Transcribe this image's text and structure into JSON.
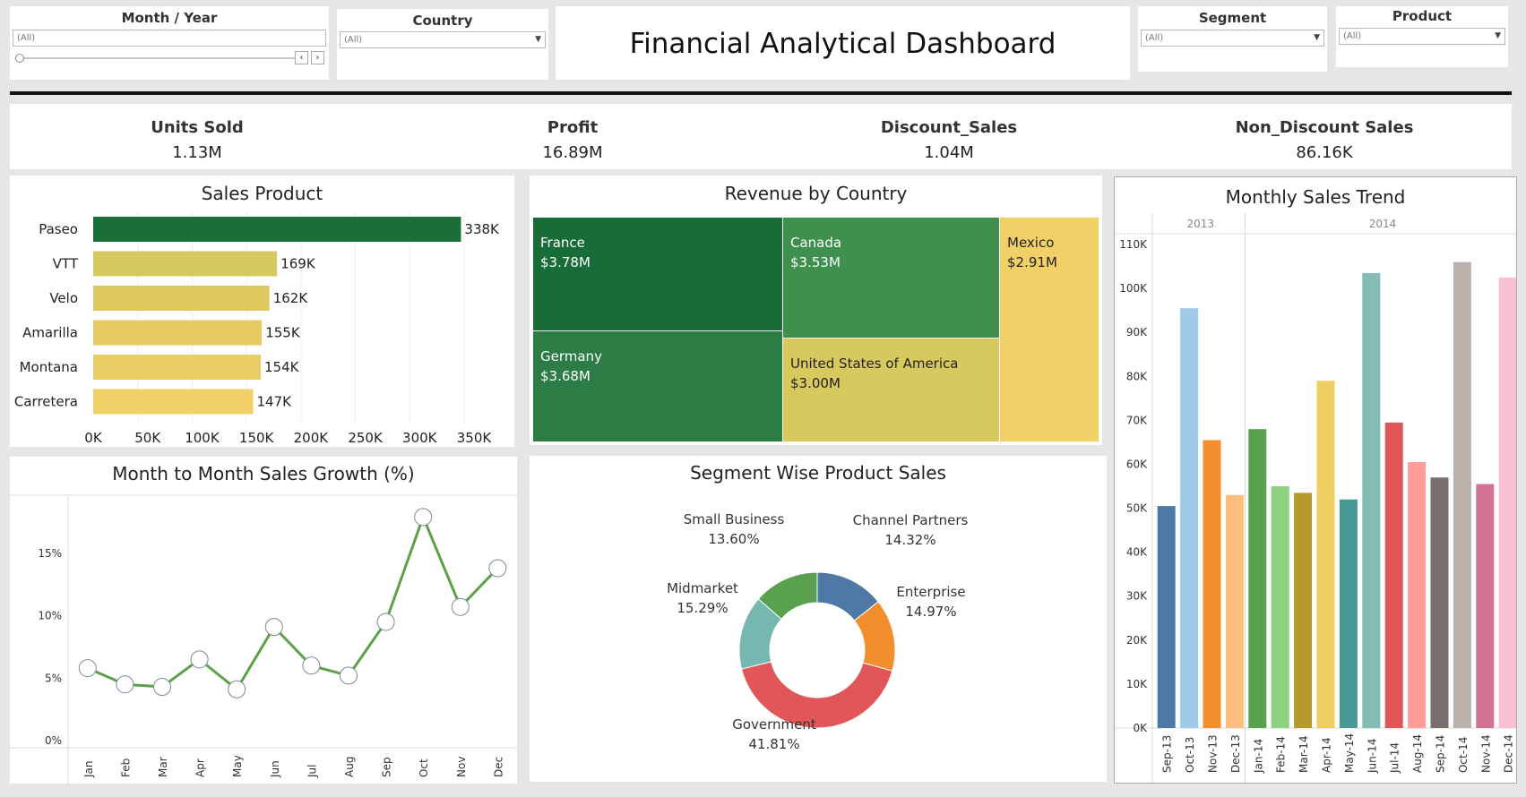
{
  "filters": {
    "month_year": {
      "title": "Month / Year",
      "value": "(All)"
    },
    "country": {
      "title": "Country",
      "value": "(All)"
    },
    "segment": {
      "title": "Segment",
      "value": "(All)"
    },
    "product": {
      "title": "Product",
      "value": "(All)"
    }
  },
  "dashboard_title": "Financial Analytical Dashboard",
  "kpis": [
    {
      "label": "Units Sold",
      "value": "1.13M"
    },
    {
      "label": "Profit",
      "value": "16.89M"
    },
    {
      "label": "Discount_Sales",
      "value": "1.04M"
    },
    {
      "label": "Non_Discount Sales",
      "value": "86.16K"
    }
  ],
  "icons": {
    "prev": "chevron-left-icon",
    "next": "chevron-right-icon",
    "dropdown": "chevron-down-icon"
  },
  "colors": {
    "dark_green": "#1a6e37",
    "mid_green": "#2d7d45",
    "green": "#3e8f4e",
    "olive_yellow": "#d6c95e",
    "yellow": "#f1d067",
    "line_green": "#5da04a"
  },
  "chart_data": [
    {
      "id": "sales_product",
      "type": "bar",
      "orientation": "horizontal",
      "title": "Sales Product",
      "categories": [
        "Paseo",
        "VTT",
        "Velo",
        "Amarilla",
        "Montana",
        "Carretera"
      ],
      "values": [
        338,
        169,
        162,
        155,
        154,
        147
      ],
      "value_labels": [
        "338K",
        "169K",
        "162K",
        "155K",
        "154K",
        "147K"
      ],
      "colors": [
        "#1a6e37",
        "#d6c95e",
        "#dfc95f",
        "#e6cc63",
        "#e8cd64",
        "#f1d067"
      ],
      "xlim": [
        0,
        350
      ],
      "xticks": [
        "0K",
        "50K",
        "100K",
        "150K",
        "200K",
        "250K",
        "300K",
        "350K"
      ]
    },
    {
      "id": "revenue_by_country",
      "type": "treemap",
      "title": "Revenue by Country",
      "items": [
        {
          "name": "France",
          "label": "$3.78M",
          "value": 3.78,
          "color": "#176c37"
        },
        {
          "name": "Germany",
          "label": "$3.68M",
          "value": 3.68,
          "color": "#2b7c45"
        },
        {
          "name": "Canada",
          "label": "$3.53M",
          "value": 3.53,
          "color": "#3f8f4f"
        },
        {
          "name": "United States of America",
          "label": "$3.00M",
          "value": 3.0,
          "color": "#d7c95e"
        },
        {
          "name": "Mexico",
          "label": "$2.91M",
          "value": 2.91,
          "color": "#f2d068"
        }
      ]
    },
    {
      "id": "monthly_sales_trend",
      "type": "bar",
      "title": "Monthly Sales Trend",
      "groups": [
        {
          "label": "2013",
          "count": 4
        },
        {
          "label": "2014",
          "count": 12
        }
      ],
      "categories": [
        "Sep-13",
        "Oct-13",
        "Nov-13",
        "Dec-13",
        "Jan-14",
        "Feb-14",
        "Mar-14",
        "Apr-14",
        "May-14",
        "Jun-14",
        "Jul-14",
        "Aug-14",
        "Sep-14",
        "Oct-14",
        "Nov-14",
        "Dec-14"
      ],
      "values": [
        50500,
        95500,
        65500,
        53000,
        68000,
        55000,
        53500,
        79000,
        52000,
        103500,
        69500,
        60500,
        57000,
        106000,
        55500,
        102500
      ],
      "colors": [
        "#4e79a7",
        "#a0cbe8",
        "#f28e2b",
        "#ffbe7d",
        "#59a14f",
        "#8cd17d",
        "#b6992d",
        "#f1ce63",
        "#499894",
        "#86bcb6",
        "#e15759",
        "#ff9d9a",
        "#79706e",
        "#bab0ac",
        "#d37295",
        "#fabfd2"
      ],
      "ylim": [
        0,
        110000
      ],
      "yticks": [
        "0K",
        "10K",
        "20K",
        "30K",
        "40K",
        "50K",
        "60K",
        "70K",
        "80K",
        "90K",
        "100K",
        "110K"
      ]
    },
    {
      "id": "month_to_month_growth",
      "type": "line",
      "title": "Month to Month Sales Growth (%)",
      "categories": [
        "Jan",
        "Feb",
        "Mar",
        "Apr",
        "May",
        "Jun",
        "Jul",
        "Aug",
        "Sep",
        "Oct",
        "Nov",
        "Dec"
      ],
      "values": [
        5.8,
        4.5,
        4.3,
        6.5,
        4.1,
        9.1,
        6.0,
        5.2,
        9.5,
        17.9,
        10.7,
        13.8
      ],
      "ylim": [
        0,
        19.5
      ],
      "yticks": [
        "0%",
        "5%",
        "10%",
        "15%"
      ],
      "ytick_values": [
        0,
        5,
        10,
        15
      ]
    },
    {
      "id": "segment_wise_product_sales",
      "type": "pie",
      "donut": true,
      "title": "Segment Wise Product Sales",
      "slices": [
        {
          "name": "Channel Partners",
          "pct_label": "14.32%",
          "value": 14.32,
          "color": "#4e79a7"
        },
        {
          "name": "Enterprise",
          "pct_label": "14.97%",
          "value": 14.97,
          "color": "#f28e2b"
        },
        {
          "name": "Government",
          "pct_label": "41.81%",
          "value": 41.81,
          "color": "#e15759"
        },
        {
          "name": "Midmarket",
          "pct_label": "15.29%",
          "value": 15.29,
          "color": "#76b7b2"
        },
        {
          "name": "Small Business",
          "pct_label": "13.60%",
          "value": 13.6,
          "color": "#59a14f"
        }
      ]
    }
  ]
}
